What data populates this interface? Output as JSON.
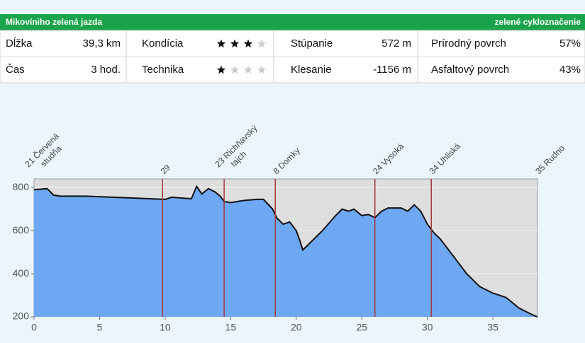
{
  "header": {
    "title": "Mikovíniho zelená jazda",
    "marking": "zelené cykloznačenie"
  },
  "table": {
    "rows": [
      [
        "Dĺžka",
        "39,3 km",
        "Kondícia",
        "Stúpanie",
        "572 m",
        "Prírodný povrch",
        "57%"
      ],
      [
        "Čas",
        "3 hod.",
        "Technika",
        "Klesanie",
        "-1156 m",
        "Asfaltový povrch",
        "43%"
      ]
    ],
    "ratings": [
      3,
      1
    ],
    "rating_max": 4
  },
  "chart_data": {
    "type": "area",
    "x": [
      0,
      1,
      1.5,
      2,
      4,
      6,
      8,
      10,
      10.5,
      11.5,
      12,
      12.4,
      12.8,
      13.3,
      13.8,
      14.2,
      14.5,
      15,
      16,
      17,
      17.5,
      18.2,
      18.5,
      19,
      19.5,
      20,
      20.3,
      20.5,
      21,
      22,
      23,
      23.5,
      24,
      24.4,
      25,
      25.5,
      26,
      26.5,
      27,
      28,
      28.5,
      29,
      29.5,
      30,
      30.5,
      31,
      32,
      33,
      34,
      35,
      36,
      37,
      38,
      38.4
    ],
    "series": [
      {
        "color": "#6fa8f2",
        "values": [
          790,
          795,
          765,
          760,
          760,
          755,
          750,
          745,
          755,
          750,
          748,
          805,
          770,
          795,
          780,
          760,
          735,
          730,
          740,
          745,
          745,
          700,
          660,
          630,
          640,
          600,
          550,
          510,
          540,
          600,
          670,
          700,
          690,
          700,
          670,
          675,
          660,
          690,
          705,
          705,
          690,
          720,
          690,
          630,
          590,
          560,
          480,
          400,
          340,
          310,
          290,
          240,
          210,
          200
        ]
      }
    ],
    "xlim": [
      0,
      38.4
    ],
    "ylim": [
      200,
      840
    ],
    "xticks": [
      0,
      5,
      10,
      15,
      20,
      25,
      30,
      35
    ],
    "yticks": [
      200,
      400,
      600,
      800
    ],
    "waypoint_color": "#a33a3a",
    "waypoints": [
      {
        "x": 0,
        "label": [
          "21 Červená",
          "studňa"
        ]
      },
      {
        "x": 9.8,
        "label": [
          "29"
        ]
      },
      {
        "x": 14.5,
        "label": [
          "23 Richňavský",
          "tajch"
        ]
      },
      {
        "x": 18.4,
        "label": [
          "8 Domky"
        ]
      },
      {
        "x": 26,
        "label": [
          "24 Vysoká"
        ]
      },
      {
        "x": 30.3,
        "label": [
          "34 Uhliská"
        ]
      },
      {
        "x": 38.4,
        "label": [
          "35 Rudno"
        ]
      }
    ]
  }
}
